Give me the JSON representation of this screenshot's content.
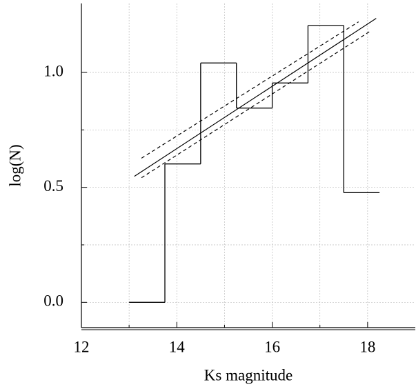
{
  "chart_data": {
    "type": "histogram",
    "xlabel": "Ks magnitude",
    "ylabel": "log(N)",
    "bins": [
      13.0,
      13.75,
      14.5,
      15.25,
      16.0,
      16.75,
      17.5,
      18.25
    ],
    "values": [
      0.0,
      0.602,
      1.041,
      0.845,
      0.954,
      1.204,
      0.477
    ],
    "color": "#000000",
    "lines": [
      {
        "x": [
          13.11,
          18.18
        ],
        "values": [
          0.548,
          1.235
        ],
        "dashed": false
      },
      {
        "x": [
          13.26,
          17.81
        ],
        "values": [
          0.627,
          1.22
        ],
        "dashed": true
      },
      {
        "x": [
          13.26,
          18.06
        ],
        "values": [
          0.542,
          1.18
        ],
        "dashed": true
      }
    ],
    "xlim": [
      12,
      19
    ],
    "ylim": [
      -0.11,
      1.3
    ],
    "xticks": [
      12,
      14,
      16,
      18
    ],
    "yticks": [
      {
        "value": 0,
        "label": "0.0"
      },
      {
        "value": 0.5,
        "label": "0.5"
      },
      {
        "value": 1,
        "label": "1.0"
      }
    ],
    "x_minor_ticks": [
      13,
      15,
      17
    ],
    "y_minor_ticks": [
      0.25,
      0.75
    ],
    "grid": true
  }
}
